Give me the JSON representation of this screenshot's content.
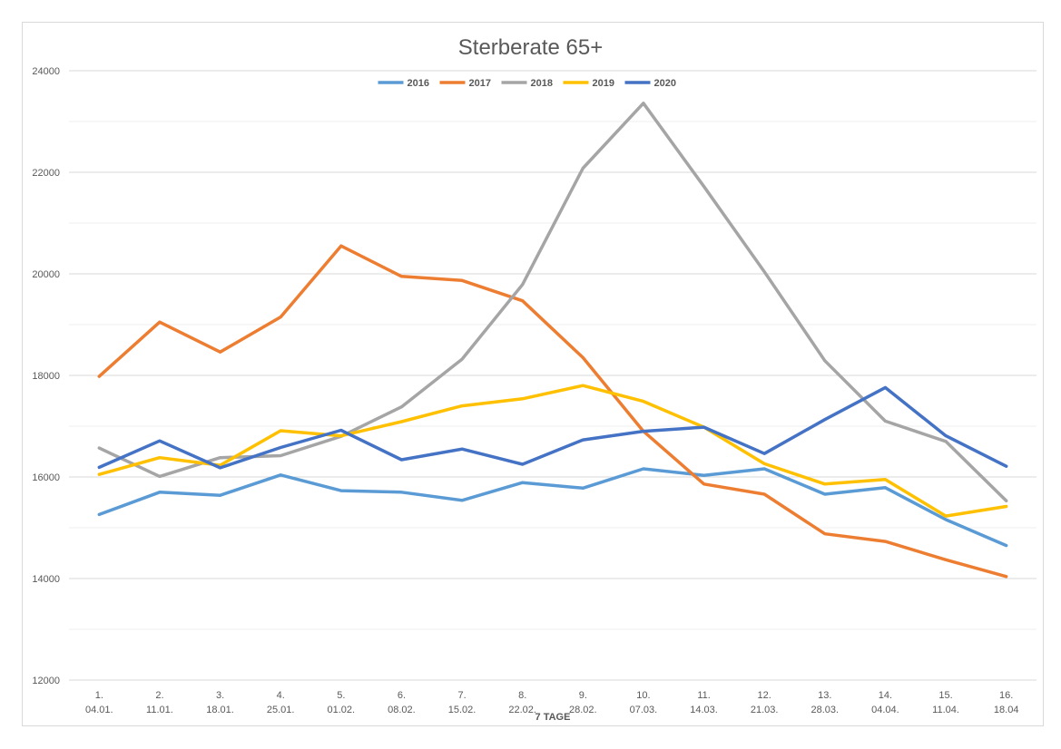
{
  "chart_data": {
    "type": "line",
    "title": "Sterberate 65+",
    "xlabel": "7 TAGE",
    "ylabel": "",
    "ylim": [
      12000,
      24000
    ],
    "yticks": [
      12000,
      14000,
      16000,
      18000,
      20000,
      22000,
      24000
    ],
    "ytick_labels": [
      "12000",
      "14000",
      "16000",
      "18000",
      "20000",
      "22000",
      "24000"
    ],
    "grid": "horizontal",
    "legend_position": "top-center",
    "categories": [
      {
        "line1": "1.",
        "line2": "04.01."
      },
      {
        "line1": "2.",
        "line2": "11.01."
      },
      {
        "line1": "3.",
        "line2": "18.01."
      },
      {
        "line1": "4.",
        "line2": "25.01."
      },
      {
        "line1": "5.",
        "line2": "01.02."
      },
      {
        "line1": "6.",
        "line2": "08.02."
      },
      {
        "line1": "7.",
        "line2": "15.02."
      },
      {
        "line1": "8.",
        "line2": "22.02."
      },
      {
        "line1": "9.",
        "line2": "28.02."
      },
      {
        "line1": "10.",
        "line2": "07.03."
      },
      {
        "line1": "11.",
        "line2": "14.03."
      },
      {
        "line1": "12.",
        "line2": "21.03."
      },
      {
        "line1": "13.",
        "line2": "28.03."
      },
      {
        "line1": "14.",
        "line2": "04.04."
      },
      {
        "line1": "15.",
        "line2": "11.04."
      },
      {
        "line1": "16.",
        "line2": "18.04"
      }
    ],
    "series": [
      {
        "name": "2016",
        "color": "#5b9bd5",
        "values": [
          15260,
          15700,
          15640,
          16040,
          15730,
          15700,
          15540,
          15890,
          15780,
          16160,
          16030,
          16160,
          15660,
          15790,
          15160,
          14650
        ]
      },
      {
        "name": "2017",
        "color": "#ed7d31",
        "values": [
          17980,
          19050,
          18460,
          19150,
          20550,
          19950,
          19870,
          19470,
          18350,
          16900,
          15860,
          15660,
          14880,
          14730,
          14370,
          14040
        ]
      },
      {
        "name": "2018",
        "color": "#a5a5a5",
        "values": [
          16570,
          16010,
          16380,
          16420,
          16800,
          17380,
          18320,
          19790,
          22080,
          23360,
          21720,
          20040,
          18290,
          17100,
          16700,
          15530
        ]
      },
      {
        "name": "2019",
        "color": "#ffc000",
        "values": [
          16050,
          16380,
          16230,
          16910,
          16810,
          17090,
          17400,
          17540,
          17800,
          17490,
          16980,
          16260,
          15860,
          15950,
          15230,
          15420
        ]
      },
      {
        "name": "2020",
        "color": "#4472c4",
        "values": [
          16190,
          16710,
          16180,
          16580,
          16920,
          16340,
          16550,
          16250,
          16730,
          16900,
          16980,
          16460,
          17130,
          17760,
          16810,
          16210
        ]
      }
    ]
  }
}
